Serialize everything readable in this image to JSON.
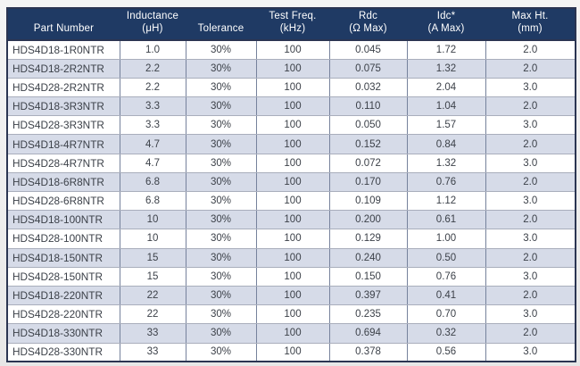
{
  "colors": {
    "header_bg": "#1f3a64",
    "header_text": "#ffffff",
    "row_bg": "#ffffff",
    "row_alt_bg": "#d6dbe8",
    "cell_text": "#3c4149",
    "outer_border": "#2b3552",
    "v_border": "#76829c",
    "h_border": "#a9aebc",
    "page_bg": "#efefef"
  },
  "table": {
    "columns": [
      {
        "id": "part-number",
        "line1": "",
        "line2": "Part Number"
      },
      {
        "id": "inductance",
        "line1": "Inductance",
        "line2": "(μH)"
      },
      {
        "id": "tolerance",
        "line1": "",
        "line2": "Tolerance"
      },
      {
        "id": "test-freq",
        "line1": "Test Freq.",
        "line2": "(kHz)"
      },
      {
        "id": "rdc",
        "line1": "Rdc",
        "line2": "(Ω Max)"
      },
      {
        "id": "idc",
        "line1": "Idc*",
        "line2": "(A Max)"
      },
      {
        "id": "max-ht",
        "line1": "Max Ht.",
        "line2": "(mm)"
      }
    ],
    "rows": [
      [
        "HDS4D18-1R0NTR",
        "1.0",
        "30%",
        "100",
        "0.045",
        "1.72",
        "2.0"
      ],
      [
        "HDS4D18-2R2NTR",
        "2.2",
        "30%",
        "100",
        "0.075",
        "1.32",
        "2.0"
      ],
      [
        "HDS4D28-2R2NTR",
        "2.2",
        "30%",
        "100",
        "0.032",
        "2.04",
        "3.0"
      ],
      [
        "HDS4D18-3R3NTR",
        "3.3",
        "30%",
        "100",
        "0.110",
        "1.04",
        "2.0"
      ],
      [
        "HDS4D28-3R3NTR",
        "3.3",
        "30%",
        "100",
        "0.050",
        "1.57",
        "3.0"
      ],
      [
        "HDS4D18-4R7NTR",
        "4.7",
        "30%",
        "100",
        "0.152",
        "0.84",
        "2.0"
      ],
      [
        "HDS4D28-4R7NTR",
        "4.7",
        "30%",
        "100",
        "0.072",
        "1.32",
        "3.0"
      ],
      [
        "HDS4D18-6R8NTR",
        "6.8",
        "30%",
        "100",
        "0.170",
        "0.76",
        "2.0"
      ],
      [
        "HDS4D28-6R8NTR",
        "6.8",
        "30%",
        "100",
        "0.109",
        "1.12",
        "3.0"
      ],
      [
        "HDS4D18-100NTR",
        "10",
        "30%",
        "100",
        "0.200",
        "0.61",
        "2.0"
      ],
      [
        "HDS4D28-100NTR",
        "10",
        "30%",
        "100",
        "0.129",
        "1.00",
        "3.0"
      ],
      [
        "HDS4D18-150NTR",
        "15",
        "30%",
        "100",
        "0.240",
        "0.50",
        "2.0"
      ],
      [
        "HDS4D28-150NTR",
        "15",
        "30%",
        "100",
        "0.150",
        "0.76",
        "3.0"
      ],
      [
        "HDS4D18-220NTR",
        "22",
        "30%",
        "100",
        "0.397",
        "0.41",
        "2.0"
      ],
      [
        "HDS4D28-220NTR",
        "22",
        "30%",
        "100",
        "0.235",
        "0.70",
        "3.0"
      ],
      [
        "HDS4D18-330NTR",
        "33",
        "30%",
        "100",
        "0.694",
        "0.32",
        "2.0"
      ],
      [
        "HDS4D28-330NTR",
        "33",
        "30%",
        "100",
        "0.378",
        "0.56",
        "3.0"
      ]
    ]
  }
}
